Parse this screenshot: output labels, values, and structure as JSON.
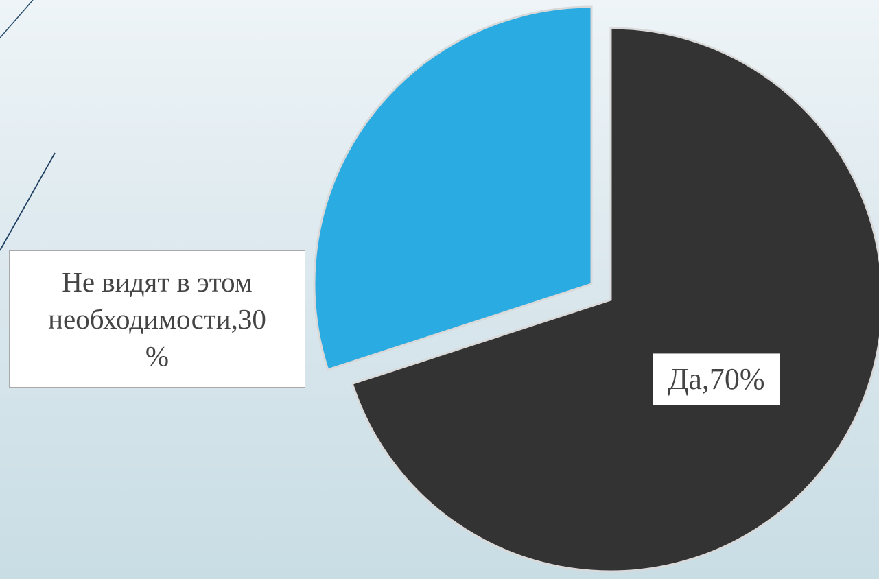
{
  "chart_data": {
    "type": "pie",
    "slices": [
      {
        "label": "Да",
        "value": 70,
        "color": "#333333",
        "text": "Да,70%"
      },
      {
        "label": "Не видят в этом необходимости",
        "value": 30,
        "color": "#2aace2",
        "text_lines": [
          "Не видят в этом",
          "необходимости,30",
          "%"
        ]
      }
    ],
    "exploded": true,
    "legend": "none"
  }
}
